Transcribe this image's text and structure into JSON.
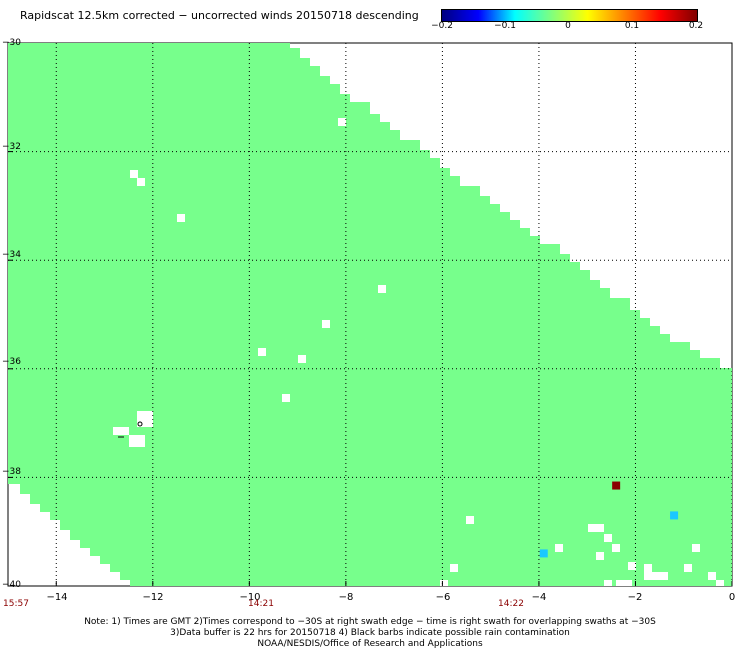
{
  "title": "Rapidscat 12.5km corrected − uncorrected winds 20150718 descending",
  "colorbar": {
    "min": -0.2,
    "max": 0.2,
    "ticks": [
      "−0.2",
      "−0.1",
      "0",
      "0.1",
      "0.2"
    ],
    "colors": [
      "#000080",
      "#0000ff",
      "#00ffff",
      "#7fff7f",
      "#ffff00",
      "#ff8000",
      "#ff0000",
      "#800000"
    ]
  },
  "axes": {
    "xlim": [
      -15,
      0
    ],
    "ylim": [
      -40,
      -30
    ],
    "xticks": [
      "−14",
      "−12",
      "−10",
      "−8",
      "−6",
      "−4",
      "−2",
      "0"
    ],
    "yticks": [
      "−30",
      "−32",
      "−34",
      "−36",
      "−38",
      "−40"
    ],
    "grid": true
  },
  "times": [
    "15:57",
    "14:21",
    "14:22"
  ],
  "colors": {
    "swath": "#77ff8c",
    "cyan_cell": "#1ac8ff",
    "red_cell": "#8b0000",
    "grid": "#000000"
  },
  "cells": [
    {
      "lon": -2.4,
      "lat": -38.15,
      "value": 0.2
    },
    {
      "lon": -1.2,
      "lat": -38.7,
      "value": -0.07
    },
    {
      "lon": -3.9,
      "lat": -39.4,
      "value": -0.06
    }
  ],
  "notes": {
    "line1": "Note: 1) Times are GMT 2)Times correspond to −30S at right swath edge − time is right swath for overlapping swaths at −30S",
    "line2": "3)Data buffer is 22 hrs for 20150718 4) Black barbs indicate possible rain contamination",
    "line3": "NOAA/NESDIS/Office of Research and Applications"
  }
}
